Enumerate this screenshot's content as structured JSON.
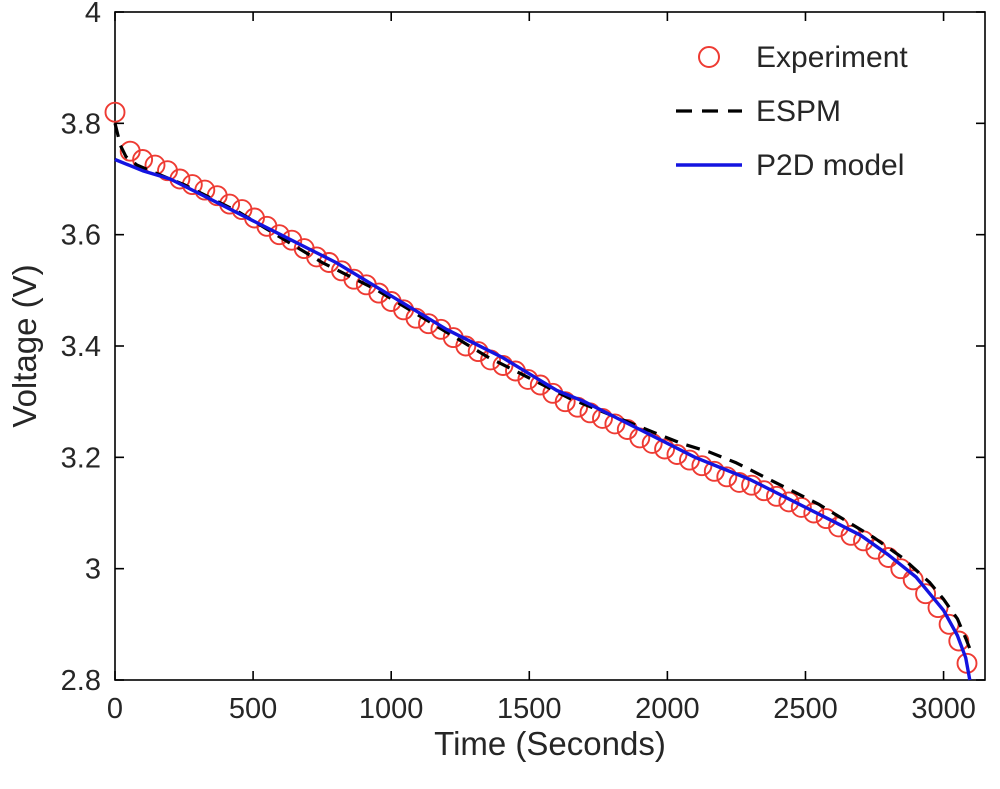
{
  "figure": {
    "background": "#ffffff",
    "axis_color": "#000000",
    "tick_label_color": "#262626"
  },
  "chart_data": {
    "type": "line+scatter",
    "title": "",
    "xlabel": "Time (Seconds)",
    "ylabel": "Voltage (V)",
    "xlim": [
      0,
      3150
    ],
    "ylim": [
      2.8,
      4.0
    ],
    "xticks": [
      0,
      500,
      1000,
      1500,
      2000,
      2500,
      3000
    ],
    "xtick_labels": [
      "0",
      "500",
      "1000",
      "1500",
      "2000",
      "2500",
      "3000"
    ],
    "yticks": [
      2.8,
      3.0,
      3.2,
      3.4,
      3.6,
      3.8,
      4.0
    ],
    "ytick_labels": [
      "2.8",
      "3",
      "3.2",
      "3.4",
      "3.6",
      "3.8",
      "4"
    ],
    "grid": false,
    "legend": {
      "position": "top-right",
      "border": false,
      "entries": [
        "Experiment",
        "ESPM",
        "P2D model"
      ]
    },
    "series": [
      {
        "name": "Experiment",
        "type": "scatter",
        "marker": "circle",
        "color": "#ee3b33",
        "points": [
          [
            0,
            3.82
          ],
          [
            55,
            3.75
          ],
          [
            100,
            3.735
          ],
          [
            145,
            3.725
          ],
          [
            190,
            3.715
          ],
          [
            235,
            3.7
          ],
          [
            280,
            3.69
          ],
          [
            325,
            3.68
          ],
          [
            370,
            3.67
          ],
          [
            415,
            3.655
          ],
          [
            460,
            3.645
          ],
          [
            505,
            3.63
          ],
          [
            550,
            3.615
          ],
          [
            595,
            3.6
          ],
          [
            640,
            3.59
          ],
          [
            685,
            3.575
          ],
          [
            730,
            3.56
          ],
          [
            775,
            3.55
          ],
          [
            820,
            3.535
          ],
          [
            865,
            3.52
          ],
          [
            910,
            3.51
          ],
          [
            955,
            3.495
          ],
          [
            1000,
            3.48
          ],
          [
            1045,
            3.465
          ],
          [
            1090,
            3.45
          ],
          [
            1135,
            3.44
          ],
          [
            1180,
            3.43
          ],
          [
            1225,
            3.415
          ],
          [
            1270,
            3.4
          ],
          [
            1315,
            3.39
          ],
          [
            1360,
            3.375
          ],
          [
            1405,
            3.365
          ],
          [
            1450,
            3.355
          ],
          [
            1495,
            3.34
          ],
          [
            1540,
            3.33
          ],
          [
            1585,
            3.315
          ],
          [
            1630,
            3.3
          ],
          [
            1675,
            3.29
          ],
          [
            1720,
            3.28
          ],
          [
            1765,
            3.27
          ],
          [
            1810,
            3.26
          ],
          [
            1855,
            3.25
          ],
          [
            1900,
            3.235
          ],
          [
            1945,
            3.225
          ],
          [
            1990,
            3.215
          ],
          [
            2035,
            3.205
          ],
          [
            2080,
            3.195
          ],
          [
            2125,
            3.185
          ],
          [
            2170,
            3.175
          ],
          [
            2215,
            3.165
          ],
          [
            2260,
            3.155
          ],
          [
            2305,
            3.15
          ],
          [
            2350,
            3.14
          ],
          [
            2395,
            3.13
          ],
          [
            2440,
            3.12
          ],
          [
            2485,
            3.11
          ],
          [
            2530,
            3.1
          ],
          [
            2575,
            3.09
          ],
          [
            2620,
            3.075
          ],
          [
            2665,
            3.06
          ],
          [
            2710,
            3.05
          ],
          [
            2755,
            3.035
          ],
          [
            2800,
            3.02
          ],
          [
            2845,
            3.0
          ],
          [
            2890,
            2.98
          ],
          [
            2935,
            2.955
          ],
          [
            2980,
            2.93
          ],
          [
            3020,
            2.9
          ],
          [
            3055,
            2.87
          ],
          [
            3085,
            2.83
          ]
        ]
      },
      {
        "name": "ESPM",
        "type": "line",
        "style": "dashed",
        "color": "#000000",
        "points": [
          [
            0,
            3.8
          ],
          [
            20,
            3.76
          ],
          [
            40,
            3.74
          ],
          [
            80,
            3.725
          ],
          [
            150,
            3.71
          ],
          [
            250,
            3.69
          ],
          [
            350,
            3.665
          ],
          [
            450,
            3.64
          ],
          [
            550,
            3.61
          ],
          [
            650,
            3.58
          ],
          [
            750,
            3.55
          ],
          [
            850,
            3.525
          ],
          [
            950,
            3.5
          ],
          [
            1050,
            3.47
          ],
          [
            1150,
            3.44
          ],
          [
            1250,
            3.41
          ],
          [
            1350,
            3.38
          ],
          [
            1450,
            3.355
          ],
          [
            1550,
            3.33
          ],
          [
            1650,
            3.305
          ],
          [
            1750,
            3.285
          ],
          [
            1850,
            3.265
          ],
          [
            1950,
            3.245
          ],
          [
            2050,
            3.225
          ],
          [
            2150,
            3.21
          ],
          [
            2250,
            3.19
          ],
          [
            2350,
            3.165
          ],
          [
            2450,
            3.14
          ],
          [
            2550,
            3.115
          ],
          [
            2650,
            3.085
          ],
          [
            2750,
            3.055
          ],
          [
            2850,
            3.02
          ],
          [
            2950,
            2.975
          ],
          [
            3000,
            2.945
          ],
          [
            3050,
            2.91
          ],
          [
            3080,
            2.875
          ],
          [
            3100,
            2.85
          ]
        ]
      },
      {
        "name": "P2D model",
        "type": "line",
        "style": "solid",
        "color": "#1414e0",
        "points": [
          [
            0,
            3.735
          ],
          [
            50,
            3.725
          ],
          [
            100,
            3.715
          ],
          [
            200,
            3.7
          ],
          [
            300,
            3.675
          ],
          [
            400,
            3.65
          ],
          [
            500,
            3.625
          ],
          [
            600,
            3.6
          ],
          [
            700,
            3.575
          ],
          [
            800,
            3.55
          ],
          [
            900,
            3.52
          ],
          [
            1000,
            3.49
          ],
          [
            1100,
            3.46
          ],
          [
            1200,
            3.43
          ],
          [
            1300,
            3.405
          ],
          [
            1400,
            3.38
          ],
          [
            1500,
            3.35
          ],
          [
            1600,
            3.32
          ],
          [
            1700,
            3.3
          ],
          [
            1800,
            3.275
          ],
          [
            1900,
            3.25
          ],
          [
            2000,
            3.225
          ],
          [
            2100,
            3.2
          ],
          [
            2200,
            3.18
          ],
          [
            2300,
            3.16
          ],
          [
            2400,
            3.135
          ],
          [
            2500,
            3.11
          ],
          [
            2600,
            3.085
          ],
          [
            2700,
            3.06
          ],
          [
            2800,
            3.025
          ],
          [
            2900,
            2.985
          ],
          [
            2950,
            2.955
          ],
          [
            3000,
            2.925
          ],
          [
            3050,
            2.88
          ],
          [
            3080,
            2.84
          ],
          [
            3095,
            2.8
          ]
        ]
      }
    ]
  }
}
